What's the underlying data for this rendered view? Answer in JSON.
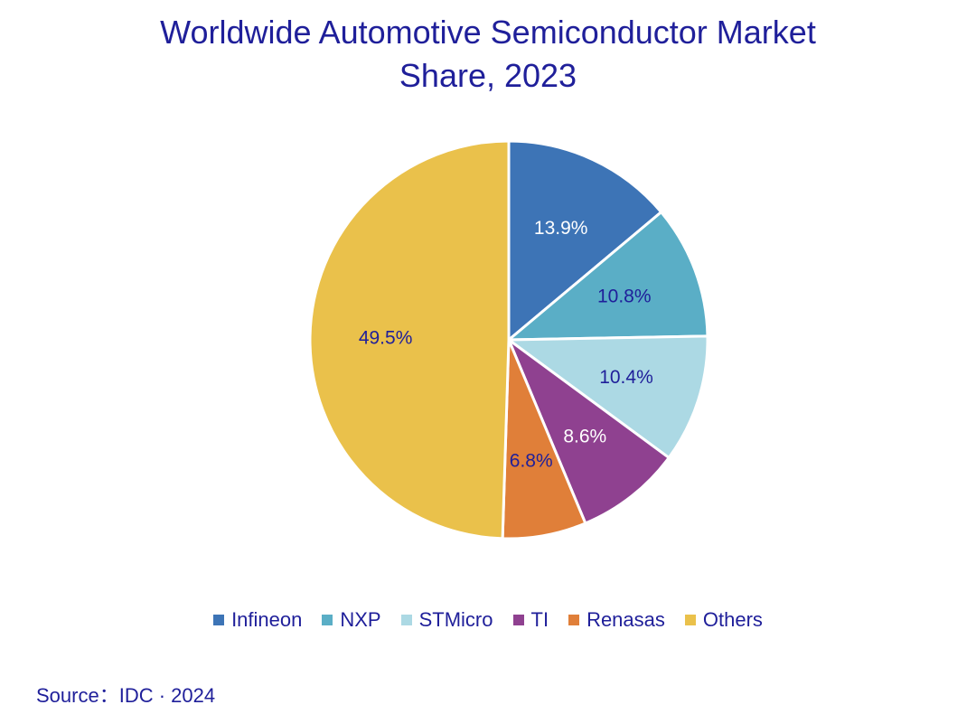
{
  "chart_data": {
    "type": "pie",
    "title_lines": [
      "Worldwide Automotive Semiconductor Market",
      "Share, 2023"
    ],
    "categories": [
      "Infineon",
      "NXP",
      "STMicro",
      "TI",
      "Renasas",
      "Others"
    ],
    "values": [
      13.9,
      10.8,
      10.4,
      8.6,
      6.8,
      49.5
    ],
    "data_labels": [
      "13.9%",
      "10.8%",
      "10.4%",
      "8.6%",
      "6.8%",
      "49.5%"
    ],
    "colors": [
      "#3d74b6",
      "#5aaec6",
      "#acd9e4",
      "#8f4190",
      "#e07f39",
      "#eac14b"
    ],
    "label_colors": [
      "#ffffff",
      "#1f1f9a",
      "#1f1f9a",
      "#ffffff",
      "#1f1f9a",
      "#1f1f9a"
    ],
    "legend_position": "bottom",
    "start_angle": "12 o'clock, clockwise"
  },
  "source": "Source：IDC · 2024"
}
